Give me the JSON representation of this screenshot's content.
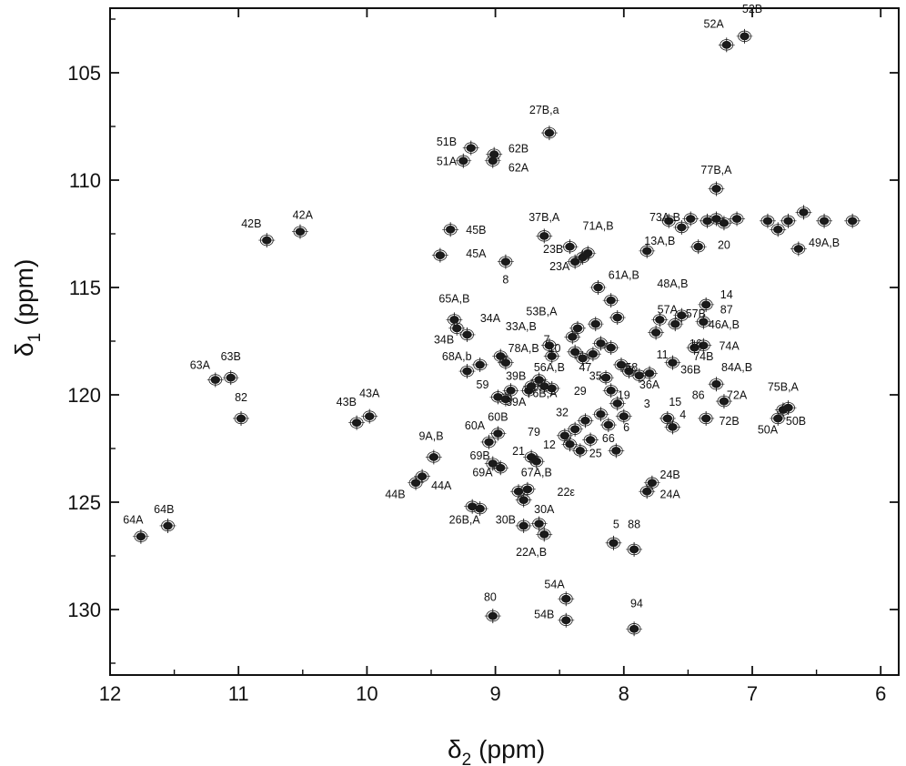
{
  "chart_data": {
    "type": "scatter",
    "subtype": "2D NMR contour spectrum (1H-15N HSQC)",
    "xlabel": {
      "symbol": "δ",
      "sub": "2",
      "unit": "(ppm)"
    },
    "ylabel": {
      "symbol": "δ",
      "sub": "1",
      "unit": "(ppm)"
    },
    "xlim": [
      12,
      5.9
    ],
    "ylim": [
      101.9,
      133.0
    ],
    "x_reversed": true,
    "y_reversed": true,
    "x_ticks": [
      12,
      11,
      10,
      9,
      8,
      7,
      6
    ],
    "y_ticks": [
      105,
      110,
      115,
      120,
      125,
      130
    ],
    "grid": false,
    "ink_color": "#1a1a1a",
    "peaks": [
      {
        "x": 11.76,
        "y": 126.6
      },
      {
        "x": 11.55,
        "y": 126.1
      },
      {
        "x": 11.18,
        "y": 119.3
      },
      {
        "x": 11.06,
        "y": 119.2
      },
      {
        "x": 10.98,
        "y": 121.1
      },
      {
        "x": 10.78,
        "y": 112.8
      },
      {
        "x": 10.52,
        "y": 112.4
      },
      {
        "x": 10.08,
        "y": 121.3
      },
      {
        "x": 9.98,
        "y": 121.0
      },
      {
        "x": 9.62,
        "y": 124.1
      },
      {
        "x": 9.57,
        "y": 123.8
      },
      {
        "x": 9.48,
        "y": 122.9
      },
      {
        "x": 9.43,
        "y": 113.5
      },
      {
        "x": 9.35,
        "y": 112.3
      },
      {
        "x": 9.32,
        "y": 116.5
      },
      {
        "x": 9.3,
        "y": 116.9
      },
      {
        "x": 9.22,
        "y": 117.2
      },
      {
        "x": 9.25,
        "y": 109.1
      },
      {
        "x": 9.19,
        "y": 108.5
      },
      {
        "x": 9.18,
        "y": 125.2
      },
      {
        "x": 9.12,
        "y": 125.3
      },
      {
        "x": 9.12,
        "y": 118.6
      },
      {
        "x": 9.22,
        "y": 118.9
      },
      {
        "x": 9.05,
        "y": 122.2
      },
      {
        "x": 8.98,
        "y": 121.8
      },
      {
        "x": 9.02,
        "y": 109.1
      },
      {
        "x": 9.01,
        "y": 108.8
      },
      {
        "x": 9.02,
        "y": 123.2
      },
      {
        "x": 8.96,
        "y": 123.4
      },
      {
        "x": 9.02,
        "y": 130.3
      },
      {
        "x": 8.96,
        "y": 118.2
      },
      {
        "x": 8.92,
        "y": 118.5
      },
      {
        "x": 8.98,
        "y": 120.1
      },
      {
        "x": 8.92,
        "y": 120.2
      },
      {
        "x": 8.88,
        "y": 119.8
      },
      {
        "x": 8.92,
        "y": 113.8
      },
      {
        "x": 8.82,
        "y": 124.5
      },
      {
        "x": 8.75,
        "y": 124.4
      },
      {
        "x": 8.74,
        "y": 119.8
      },
      {
        "x": 8.72,
        "y": 119.6
      },
      {
        "x": 8.66,
        "y": 119.3
      },
      {
        "x": 8.62,
        "y": 119.6
      },
      {
        "x": 8.56,
        "y": 119.7
      },
      {
        "x": 8.78,
        "y": 124.9
      },
      {
        "x": 8.78,
        "y": 126.1
      },
      {
        "x": 8.72,
        "y": 122.9
      },
      {
        "x": 8.68,
        "y": 123.1
      },
      {
        "x": 8.66,
        "y": 126.0
      },
      {
        "x": 8.62,
        "y": 126.5
      },
      {
        "x": 8.62,
        "y": 112.6
      },
      {
        "x": 8.58,
        "y": 107.8
      },
      {
        "x": 8.56,
        "y": 118.2
      },
      {
        "x": 8.58,
        "y": 117.7
      },
      {
        "x": 8.46,
        "y": 121.9
      },
      {
        "x": 8.42,
        "y": 122.3
      },
      {
        "x": 8.38,
        "y": 121.6
      },
      {
        "x": 8.34,
        "y": 122.6
      },
      {
        "x": 8.3,
        "y": 121.2
      },
      {
        "x": 8.26,
        "y": 122.1
      },
      {
        "x": 8.4,
        "y": 117.3
      },
      {
        "x": 8.36,
        "y": 116.9
      },
      {
        "x": 8.22,
        "y": 116.7
      },
      {
        "x": 8.05,
        "y": 116.4
      },
      {
        "x": 8.42,
        "y": 113.1
      },
      {
        "x": 8.38,
        "y": 113.8
      },
      {
        "x": 8.32,
        "y": 113.6
      },
      {
        "x": 8.28,
        "y": 113.4
      },
      {
        "x": 8.1,
        "y": 115.6
      },
      {
        "x": 8.2,
        "y": 115.0
      },
      {
        "x": 8.38,
        "y": 118.0
      },
      {
        "x": 8.32,
        "y": 118.3
      },
      {
        "x": 8.24,
        "y": 118.1
      },
      {
        "x": 8.18,
        "y": 117.6
      },
      {
        "x": 8.1,
        "y": 117.8
      },
      {
        "x": 8.02,
        "y": 118.6
      },
      {
        "x": 7.96,
        "y": 118.9
      },
      {
        "x": 8.14,
        "y": 119.2
      },
      {
        "x": 8.1,
        "y": 119.8
      },
      {
        "x": 8.05,
        "y": 120.4
      },
      {
        "x": 8.0,
        "y": 121.0
      },
      {
        "x": 8.18,
        "y": 120.9
      },
      {
        "x": 8.12,
        "y": 121.4
      },
      {
        "x": 8.06,
        "y": 122.6
      },
      {
        "x": 8.45,
        "y": 129.5
      },
      {
        "x": 8.45,
        "y": 130.5
      },
      {
        "x": 8.08,
        "y": 126.9
      },
      {
        "x": 7.92,
        "y": 127.2
      },
      {
        "x": 7.92,
        "y": 130.9
      },
      {
        "x": 7.82,
        "y": 124.5
      },
      {
        "x": 7.78,
        "y": 124.1
      },
      {
        "x": 7.88,
        "y": 119.1
      },
      {
        "x": 7.8,
        "y": 119.0
      },
      {
        "x": 7.82,
        "y": 113.3
      },
      {
        "x": 7.75,
        "y": 117.1
      },
      {
        "x": 7.72,
        "y": 116.5
      },
      {
        "x": 7.66,
        "y": 121.1
      },
      {
        "x": 7.62,
        "y": 121.5
      },
      {
        "x": 7.62,
        "y": 118.5
      },
      {
        "x": 7.55,
        "y": 116.3
      },
      {
        "x": 7.6,
        "y": 116.7
      },
      {
        "x": 7.45,
        "y": 117.8
      },
      {
        "x": 7.38,
        "y": 117.7
      },
      {
        "x": 7.42,
        "y": 113.1
      },
      {
        "x": 7.38,
        "y": 116.6
      },
      {
        "x": 7.36,
        "y": 115.8
      },
      {
        "x": 7.36,
        "y": 121.1
      },
      {
        "x": 7.28,
        "y": 119.5
      },
      {
        "x": 7.22,
        "y": 120.3
      },
      {
        "x": 7.28,
        "y": 110.4
      },
      {
        "x": 7.2,
        "y": 103.7
      },
      {
        "x": 7.06,
        "y": 103.3
      },
      {
        "x": 6.8,
        "y": 121.1
      },
      {
        "x": 6.76,
        "y": 120.7
      },
      {
        "x": 6.72,
        "y": 120.6
      },
      {
        "x": 6.64,
        "y": 113.2
      },
      {
        "x": 7.28,
        "y": 111.8
      },
      {
        "x": 7.22,
        "y": 112.0
      },
      {
        "x": 7.12,
        "y": 111.8
      },
      {
        "x": 6.88,
        "y": 111.9
      },
      {
        "x": 6.8,
        "y": 112.3
      },
      {
        "x": 6.72,
        "y": 111.9
      },
      {
        "x": 6.6,
        "y": 111.5
      },
      {
        "x": 6.44,
        "y": 111.9
      },
      {
        "x": 6.22,
        "y": 111.9
      },
      {
        "x": 7.55,
        "y": 112.2
      },
      {
        "x": 7.48,
        "y": 111.8
      },
      {
        "x": 7.65,
        "y": 111.9
      },
      {
        "x": 7.35,
        "y": 111.9
      }
    ],
    "annotations": [
      {
        "text": "52A",
        "x": 7.3,
        "y": 102.9
      },
      {
        "text": "52B",
        "x": 7.0,
        "y": 102.2
      },
      {
        "text": "27B,a",
        "x": 8.62,
        "y": 106.9
      },
      {
        "text": "51B",
        "x": 9.38,
        "y": 108.4
      },
      {
        "text": "51A",
        "x": 9.38,
        "y": 109.3
      },
      {
        "text": "62B",
        "x": 8.82,
        "y": 108.7
      },
      {
        "text": "62A",
        "x": 8.82,
        "y": 109.6
      },
      {
        "text": "77B,A",
        "x": 7.28,
        "y": 109.7
      },
      {
        "text": "42B",
        "x": 10.9,
        "y": 112.2
      },
      {
        "text": "42A",
        "x": 10.5,
        "y": 111.8
      },
      {
        "text": "45B",
        "x": 9.15,
        "y": 112.5
      },
      {
        "text": "45A",
        "x": 9.15,
        "y": 113.6
      },
      {
        "text": "37B,A",
        "x": 8.62,
        "y": 111.9
      },
      {
        "text": "71A,B",
        "x": 8.2,
        "y": 112.3
      },
      {
        "text": "73A,B",
        "x": 7.68,
        "y": 111.9
      },
      {
        "text": "13A,B",
        "x": 7.72,
        "y": 113.0
      },
      {
        "text": "23B",
        "x": 8.55,
        "y": 113.4
      },
      {
        "text": "23A",
        "x": 8.5,
        "y": 114.2
      },
      {
        "text": "20",
        "x": 7.22,
        "y": 113.2
      },
      {
        "text": "49A,B",
        "x": 6.44,
        "y": 113.1
      },
      {
        "text": "8",
        "x": 8.92,
        "y": 114.8
      },
      {
        "text": "61A,B",
        "x": 8.0,
        "y": 114.6
      },
      {
        "text": "48A,B",
        "x": 7.62,
        "y": 115.0
      },
      {
        "text": "65A,B",
        "x": 9.32,
        "y": 115.7
      },
      {
        "text": "14",
        "x": 7.2,
        "y": 115.5
      },
      {
        "text": "57A",
        "x": 7.66,
        "y": 116.2
      },
      {
        "text": "57B",
        "x": 7.44,
        "y": 116.4
      },
      {
        "text": "87",
        "x": 7.2,
        "y": 116.2
      },
      {
        "text": "46A,B",
        "x": 7.22,
        "y": 116.9
      },
      {
        "text": "53B,A",
        "x": 8.64,
        "y": 116.3
      },
      {
        "text": "34A",
        "x": 9.04,
        "y": 116.6
      },
      {
        "text": "33A,B",
        "x": 8.8,
        "y": 117.0
      },
      {
        "text": "7",
        "x": 8.6,
        "y": 117.6
      },
      {
        "text": "34B",
        "x": 9.4,
        "y": 117.6
      },
      {
        "text": "78A,B",
        "x": 8.78,
        "y": 118.0
      },
      {
        "text": "10",
        "x": 8.54,
        "y": 118.0
      },
      {
        "text": "11",
        "x": 7.7,
        "y": 118.3
      },
      {
        "text": "16",
        "x": 7.44,
        "y": 117.8
      },
      {
        "text": "74A",
        "x": 7.18,
        "y": 117.9
      },
      {
        "text": "74B",
        "x": 7.38,
        "y": 118.4
      },
      {
        "text": "68A,b",
        "x": 9.3,
        "y": 118.4
      },
      {
        "text": "47",
        "x": 8.3,
        "y": 118.9
      },
      {
        "text": "58",
        "x": 7.94,
        "y": 118.9
      },
      {
        "text": "36B",
        "x": 7.48,
        "y": 119.0
      },
      {
        "text": "56A,B",
        "x": 8.58,
        "y": 118.9
      },
      {
        "text": "84A,B",
        "x": 7.12,
        "y": 118.9
      },
      {
        "text": "39B",
        "x": 8.84,
        "y": 119.3
      },
      {
        "text": "35",
        "x": 8.22,
        "y": 119.3
      },
      {
        "text": "36A",
        "x": 7.8,
        "y": 119.7
      },
      {
        "text": "63A",
        "x": 11.3,
        "y": 118.8
      },
      {
        "text": "63B",
        "x": 11.06,
        "y": 118.4
      },
      {
        "text": "59",
        "x": 9.1,
        "y": 119.7
      },
      {
        "text": "76B,A",
        "x": 8.64,
        "y": 120.1
      },
      {
        "text": "29",
        "x": 8.34,
        "y": 120.0
      },
      {
        "text": "19",
        "x": 8.0,
        "y": 120.2
      },
      {
        "text": "75B,A",
        "x": 6.76,
        "y": 119.8
      },
      {
        "text": "72A",
        "x": 7.12,
        "y": 120.2
      },
      {
        "text": "86",
        "x": 7.42,
        "y": 120.2
      },
      {
        "text": "39A",
        "x": 8.84,
        "y": 120.5
      },
      {
        "text": "3",
        "x": 7.82,
        "y": 120.6
      },
      {
        "text": "15",
        "x": 7.6,
        "y": 120.5
      },
      {
        "text": "43B",
        "x": 10.16,
        "y": 120.5
      },
      {
        "text": "43A",
        "x": 9.98,
        "y": 120.1
      },
      {
        "text": "82",
        "x": 10.98,
        "y": 120.3
      },
      {
        "text": "32",
        "x": 8.48,
        "y": 121.0
      },
      {
        "text": "4",
        "x": 7.54,
        "y": 121.1
      },
      {
        "text": "6",
        "x": 7.98,
        "y": 121.7
      },
      {
        "text": "60A",
        "x": 9.16,
        "y": 121.6
      },
      {
        "text": "60B",
        "x": 8.98,
        "y": 121.2
      },
      {
        "text": "72B",
        "x": 7.18,
        "y": 121.4
      },
      {
        "text": "50A",
        "x": 6.88,
        "y": 121.8
      },
      {
        "text": "50B",
        "x": 6.66,
        "y": 121.4
      },
      {
        "text": "79",
        "x": 8.7,
        "y": 121.9
      },
      {
        "text": "66",
        "x": 8.12,
        "y": 122.2
      },
      {
        "text": "12",
        "x": 8.58,
        "y": 122.5
      },
      {
        "text": "9A,B",
        "x": 9.5,
        "y": 122.1
      },
      {
        "text": "21",
        "x": 8.82,
        "y": 122.8
      },
      {
        "text": "25",
        "x": 8.22,
        "y": 122.9
      },
      {
        "text": "69B",
        "x": 9.12,
        "y": 123.0
      },
      {
        "text": "67A,B",
        "x": 8.68,
        "y": 123.8
      },
      {
        "text": "69A",
        "x": 9.1,
        "y": 123.8
      },
      {
        "text": "24B",
        "x": 7.64,
        "y": 123.9
      },
      {
        "text": "44A",
        "x": 9.42,
        "y": 124.4
      },
      {
        "text": "44B",
        "x": 9.78,
        "y": 124.8
      },
      {
        "text": "22ε",
        "x": 8.45,
        "y": 124.7
      },
      {
        "text": "24A",
        "x": 7.64,
        "y": 124.8
      },
      {
        "text": "26B,A",
        "x": 9.24,
        "y": 126.0
      },
      {
        "text": "30A",
        "x": 8.62,
        "y": 125.5
      },
      {
        "text": "30B",
        "x": 8.92,
        "y": 126.0
      },
      {
        "text": "64A",
        "x": 11.82,
        "y": 126.0
      },
      {
        "text": "64B",
        "x": 11.58,
        "y": 125.5
      },
      {
        "text": "5",
        "x": 8.06,
        "y": 126.2
      },
      {
        "text": "88",
        "x": 7.92,
        "y": 126.2
      },
      {
        "text": "22A,B",
        "x": 8.72,
        "y": 127.5
      },
      {
        "text": "54A",
        "x": 8.54,
        "y": 129.0
      },
      {
        "text": "54B",
        "x": 8.62,
        "y": 130.4
      },
      {
        "text": "80",
        "x": 9.04,
        "y": 129.6
      },
      {
        "text": "94",
        "x": 7.9,
        "y": 129.9
      }
    ]
  }
}
